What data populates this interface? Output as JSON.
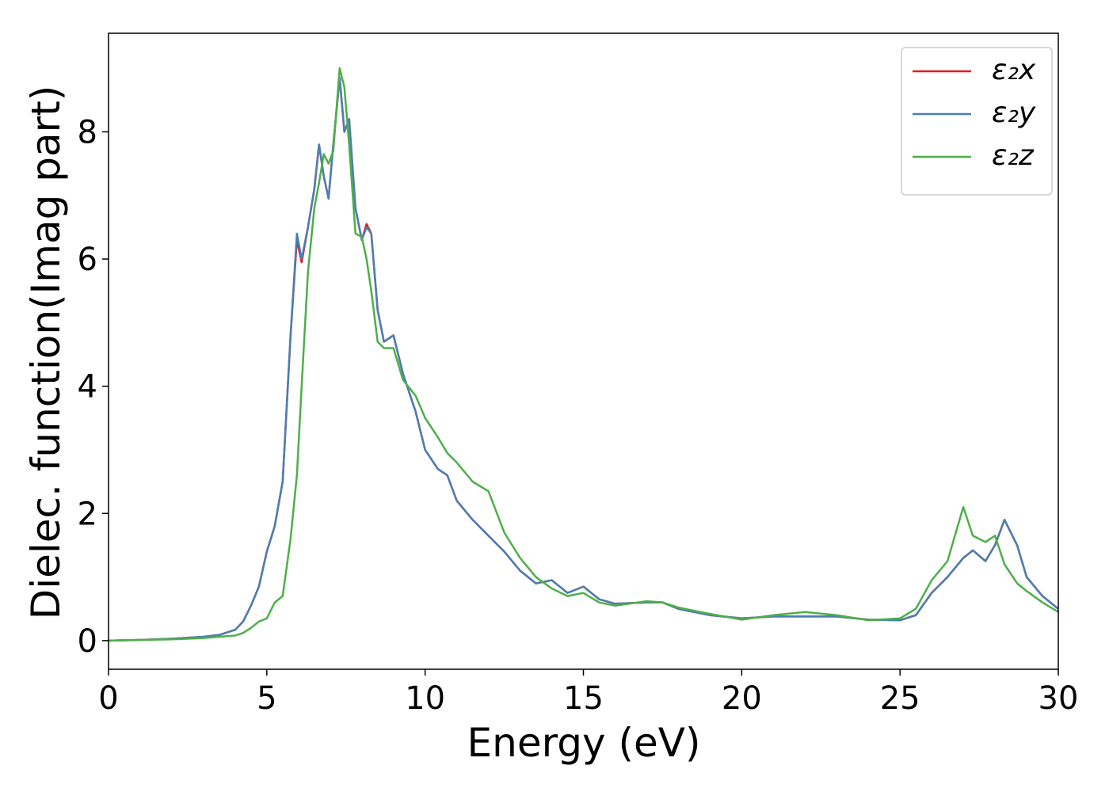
{
  "chart_data": {
    "type": "line",
    "xlabel": "Energy (eV)",
    "ylabel": "Dielec. function(Imag part)",
    "x": [
      0,
      1,
      2,
      3,
      3.5,
      4,
      4.25,
      4.5,
      4.75,
      5,
      5.25,
      5.5,
      5.75,
      5.95,
      6.1,
      6.3,
      6.5,
      6.65,
      6.8,
      6.95,
      7.1,
      7.3,
      7.45,
      7.6,
      7.8,
      8.0,
      8.15,
      8.3,
      8.5,
      8.7,
      9.0,
      9.3,
      9.7,
      10,
      10.4,
      10.7,
      11,
      11.5,
      12,
      12.5,
      13,
      13.5,
      14,
      14.5,
      15,
      15.5,
      16,
      17,
      17.5,
      18,
      19,
      20,
      21,
      22,
      23,
      24,
      25,
      25.5,
      26,
      26.5,
      27,
      27.3,
      27.7,
      28,
      28.3,
      28.7,
      29,
      29.5,
      30
    ],
    "series": [
      {
        "name": "ε₂x",
        "color": "#e41a1c",
        "values": [
          0,
          0.01,
          0.03,
          0.06,
          0.09,
          0.17,
          0.3,
          0.55,
          0.85,
          1.4,
          1.8,
          2.5,
          4.8,
          6.3,
          5.95,
          6.5,
          7.1,
          7.8,
          7.3,
          6.95,
          7.8,
          8.85,
          8.0,
          8.2,
          6.8,
          6.3,
          6.55,
          6.4,
          5.2,
          4.7,
          4.8,
          4.2,
          3.6,
          3.0,
          2.7,
          2.6,
          2.2,
          1.9,
          1.65,
          1.4,
          1.1,
          0.9,
          0.95,
          0.75,
          0.85,
          0.65,
          0.58,
          0.6,
          0.6,
          0.5,
          0.4,
          0.35,
          0.38,
          0.38,
          0.38,
          0.33,
          0.32,
          0.4,
          0.75,
          1.0,
          1.3,
          1.42,
          1.25,
          1.5,
          1.9,
          1.5,
          1.0,
          0.7,
          0.5
        ]
      },
      {
        "name": "ε₂y",
        "color": "#4a7fb3",
        "values": [
          0,
          0.01,
          0.03,
          0.06,
          0.09,
          0.17,
          0.3,
          0.55,
          0.85,
          1.4,
          1.8,
          2.5,
          4.8,
          6.4,
          6.0,
          6.5,
          7.1,
          7.8,
          7.3,
          6.95,
          7.8,
          8.85,
          8.0,
          8.2,
          6.8,
          6.3,
          6.5,
          6.4,
          5.2,
          4.7,
          4.8,
          4.2,
          3.6,
          3.0,
          2.7,
          2.6,
          2.2,
          1.9,
          1.65,
          1.4,
          1.1,
          0.9,
          0.95,
          0.75,
          0.85,
          0.65,
          0.58,
          0.6,
          0.6,
          0.5,
          0.4,
          0.35,
          0.38,
          0.38,
          0.38,
          0.33,
          0.32,
          0.4,
          0.75,
          1.0,
          1.3,
          1.42,
          1.25,
          1.5,
          1.9,
          1.5,
          1.0,
          0.7,
          0.5
        ]
      },
      {
        "name": "ε₂z",
        "color": "#4daf4a",
        "values": [
          0,
          0.01,
          0.02,
          0.04,
          0.06,
          0.08,
          0.12,
          0.2,
          0.3,
          0.35,
          0.6,
          0.7,
          1.6,
          2.6,
          4.0,
          5.8,
          6.8,
          7.2,
          7.65,
          7.5,
          7.7,
          9.0,
          8.7,
          7.8,
          6.4,
          6.35,
          6.0,
          5.5,
          4.7,
          4.6,
          4.6,
          4.1,
          3.85,
          3.5,
          3.2,
          2.95,
          2.8,
          2.5,
          2.35,
          1.7,
          1.3,
          1.0,
          0.82,
          0.7,
          0.75,
          0.6,
          0.55,
          0.62,
          0.6,
          0.52,
          0.42,
          0.33,
          0.4,
          0.45,
          0.4,
          0.32,
          0.35,
          0.5,
          0.95,
          1.25,
          2.1,
          1.65,
          1.55,
          1.65,
          1.2,
          0.9,
          0.78,
          0.6,
          0.45
        ]
      }
    ],
    "xlim": [
      0,
      30
    ],
    "xticks": [
      0,
      5,
      10,
      15,
      20,
      25,
      30
    ],
    "ylim": [
      -0.45,
      9.55
    ],
    "yticks": [
      0,
      2,
      4,
      6,
      8
    ],
    "legend": "upper right"
  }
}
